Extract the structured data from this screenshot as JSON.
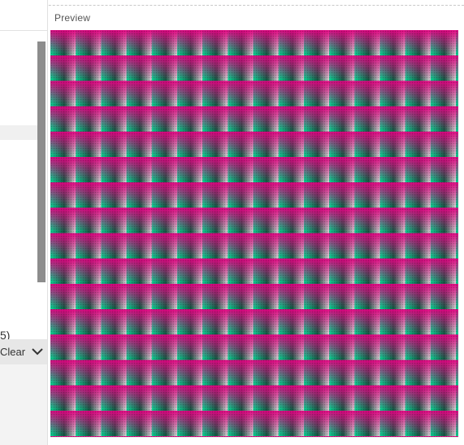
{
  "preview": {
    "title": "Preview"
  },
  "left_panel": {
    "partial_text": "5)",
    "clear_label": "Clear",
    "chevron_icon": "chevron-down-icon"
  },
  "colors": {
    "magenta": "#e60082",
    "green": "#00e196",
    "scrollbar": "#8d8d8d"
  }
}
